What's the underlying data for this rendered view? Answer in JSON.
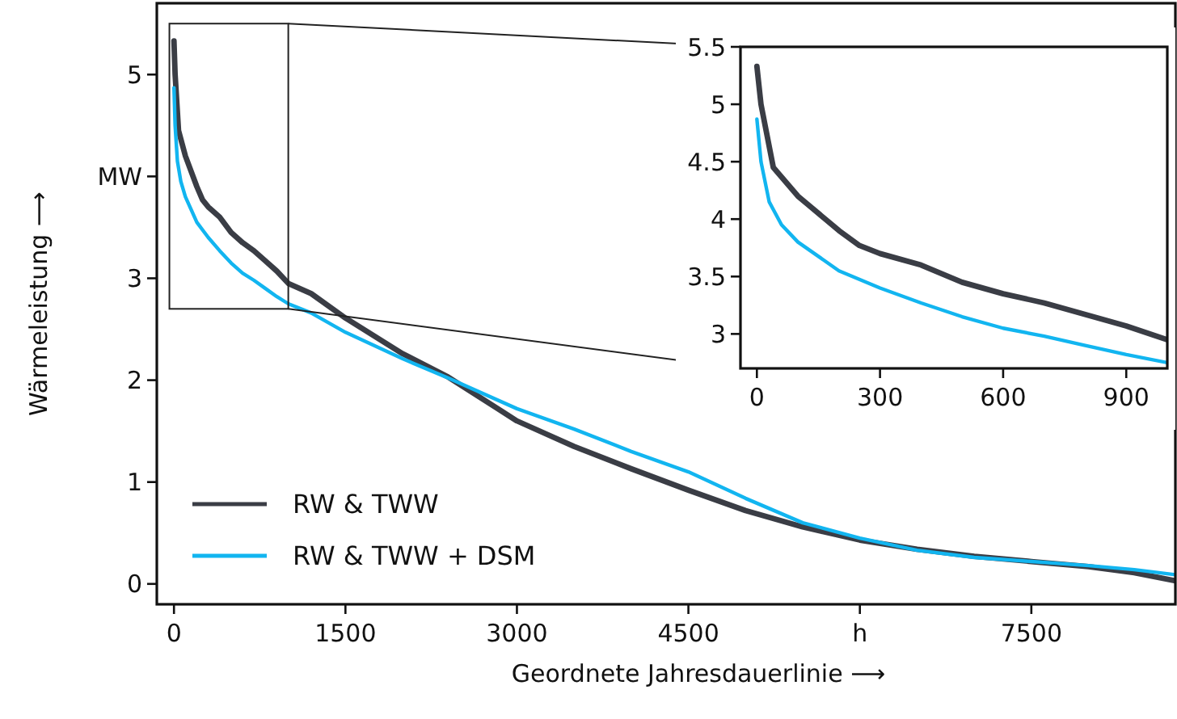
{
  "chart_data": [
    {
      "type": "line",
      "xlabel": "Geordnete Jahresdauerlinie ⟶",
      "ylabel": "Wärmeleistung ⟶",
      "xlim": [
        -150,
        8760
      ],
      "ylim": [
        -0.2,
        5.7
      ],
      "xticks": [
        0,
        1500,
        3000,
        4500,
        {
          "value": 6000,
          "label": "h"
        },
        7500
      ],
      "yticks": [
        0,
        1,
        2,
        3,
        {
          "value": 4,
          "label": "MW"
        },
        5
      ],
      "grid": false,
      "legend": "bottom left",
      "line_style": "solid",
      "marker": "none",
      "series": [
        {
          "name": "RW & TWW",
          "color": "#3a3d45",
          "x": [
            0,
            10,
            40,
            100,
            200,
            250,
            300,
            400,
            500,
            600,
            700,
            800,
            900,
            1000,
            1200,
            1500,
            2000,
            2400,
            3000,
            3500,
            4000,
            4500,
            5000,
            5500,
            6000,
            6500,
            7000,
            7500,
            8000,
            8400,
            8760
          ],
          "values": [
            5.33,
            5.0,
            4.45,
            4.2,
            3.9,
            3.77,
            3.7,
            3.6,
            3.45,
            3.35,
            3.27,
            3.17,
            3.07,
            2.95,
            2.85,
            2.61,
            2.26,
            2.03,
            1.6,
            1.35,
            1.13,
            0.92,
            0.72,
            0.56,
            0.43,
            0.34,
            0.27,
            0.22,
            0.17,
            0.11,
            0.03
          ]
        },
        {
          "name": "RW & TWW + DSM",
          "color": "#12b5f0",
          "x": [
            0,
            10,
            30,
            60,
            100,
            200,
            300,
            400,
            500,
            600,
            700,
            800,
            900,
            1000,
            1200,
            1500,
            2000,
            2400,
            3000,
            3500,
            4000,
            4500,
            5000,
            5500,
            6000,
            6500,
            7000,
            7500,
            8000,
            8400,
            8760
          ],
          "values": [
            4.87,
            4.5,
            4.15,
            3.95,
            3.8,
            3.55,
            3.4,
            3.27,
            3.15,
            3.05,
            2.98,
            2.9,
            2.82,
            2.75,
            2.66,
            2.47,
            2.21,
            2.02,
            1.72,
            1.52,
            1.3,
            1.1,
            0.84,
            0.6,
            0.45,
            0.33,
            0.26,
            0.22,
            0.18,
            0.14,
            0.09
          ]
        }
      ]
    },
    {
      "type": "line",
      "xlim": [
        -40,
        1000
      ],
      "ylim": [
        2.7,
        5.5
      ],
      "xticks": [
        0,
        300,
        600,
        900
      ],
      "yticks": [
        3,
        3.5,
        4,
        4.5,
        5,
        5.5
      ],
      "grid": false,
      "legend": false,
      "line_style": "solid",
      "marker": "none",
      "series": [
        {
          "color": "#3a3d45",
          "x": [
            0,
            10,
            40,
            100,
            200,
            250,
            300,
            400,
            500,
            600,
            700,
            800,
            900,
            1000
          ],
          "values": [
            5.33,
            5.0,
            4.45,
            4.2,
            3.9,
            3.77,
            3.7,
            3.6,
            3.45,
            3.35,
            3.27,
            3.17,
            3.07,
            2.95
          ]
        },
        {
          "color": "#12b5f0",
          "x": [
            0,
            10,
            30,
            60,
            100,
            200,
            300,
            400,
            500,
            600,
            700,
            800,
            900,
            1000
          ],
          "values": [
            4.87,
            4.5,
            4.15,
            3.95,
            3.8,
            3.55,
            3.4,
            3.27,
            3.15,
            3.05,
            2.98,
            2.9,
            2.82,
            2.75
          ]
        }
      ]
    }
  ]
}
